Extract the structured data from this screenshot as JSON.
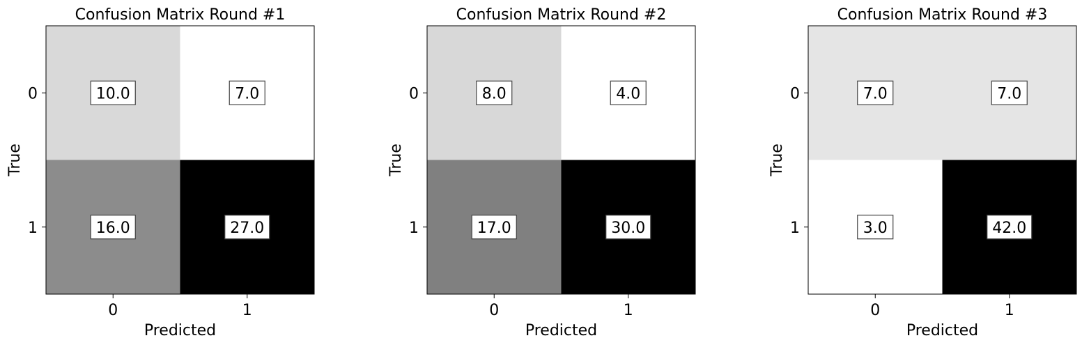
{
  "chart_data": [
    {
      "type": "heatmap",
      "title": "Confusion Matrix Round #1",
      "xlabel": "Predicted",
      "ylabel": "True",
      "x_categories": [
        "0",
        "1"
      ],
      "y_categories": [
        "0",
        "1"
      ],
      "values": [
        [
          10.0,
          7.0
        ],
        [
          16.0,
          27.0
        ]
      ],
      "value_labels": [
        [
          "10.0",
          "7.0"
        ],
        [
          "16.0",
          "27.0"
        ]
      ],
      "colormap": "gray_r"
    },
    {
      "type": "heatmap",
      "title": "Confusion Matrix Round #2",
      "xlabel": "Predicted",
      "ylabel": "True",
      "x_categories": [
        "0",
        "1"
      ],
      "y_categories": [
        "0",
        "1"
      ],
      "values": [
        [
          8.0,
          4.0
        ],
        [
          17.0,
          30.0
        ]
      ],
      "value_labels": [
        [
          "8.0",
          "4.0"
        ],
        [
          "17.0",
          "30.0"
        ]
      ],
      "colormap": "gray_r"
    },
    {
      "type": "heatmap",
      "title": "Confusion Matrix Round #3",
      "xlabel": "Predicted",
      "ylabel": "True",
      "x_categories": [
        "0",
        "1"
      ],
      "y_categories": [
        "0",
        "1"
      ],
      "values": [
        [
          7.0,
          7.0
        ],
        [
          3.0,
          42.0
        ]
      ],
      "value_labels": [
        [
          "7.0",
          "7.0"
        ],
        [
          "3.0",
          "42.0"
        ]
      ],
      "colormap": "gray_r"
    }
  ]
}
